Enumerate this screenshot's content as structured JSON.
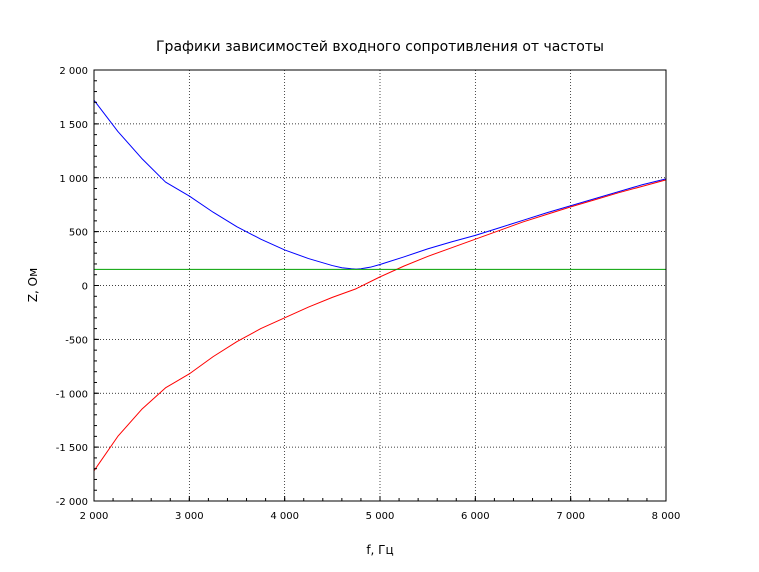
{
  "chart_data": {
    "type": "line",
    "title": "Графики зависимостей входного сопротивления от частоты",
    "xlabel": "f, Гц",
    "ylabel": "Z, Ом",
    "xlim": [
      2000,
      8000
    ],
    "ylim": [
      -2000,
      2000
    ],
    "xticks": [
      2000,
      3000,
      4000,
      5000,
      6000,
      7000,
      8000
    ],
    "xtick_labels": [
      "2 000",
      "3 000",
      "4 000",
      "5 000",
      "6 000",
      "7 000",
      "8 000"
    ],
    "yticks": [
      2000,
      1500,
      1000,
      500,
      0,
      -500,
      -1000,
      -1500,
      -2000
    ],
    "ytick_labels": [
      "2 000",
      "1 500",
      "1 000",
      "500",
      "0",
      "-500",
      "-1 000",
      "-1 500",
      "-2 000"
    ],
    "grid": true,
    "series": [
      {
        "color": "#0000ff",
        "x": [
          2000,
          2250,
          2500,
          2750,
          3000,
          3250,
          3500,
          3750,
          4000,
          4250,
          4500,
          4600,
          4700,
          4750,
          4800,
          4900,
          5000,
          5250,
          5500,
          5750,
          6000,
          6250,
          6500,
          6750,
          7000,
          7250,
          7500,
          7750,
          8000
        ],
        "y": [
          1720,
          1430,
          1180,
          960,
          830,
          680,
          545,
          430,
          330,
          250,
          185,
          165,
          155,
          152,
          155,
          170,
          195,
          265,
          340,
          405,
          465,
          535,
          605,
          675,
          740,
          805,
          870,
          935,
          990
        ]
      },
      {
        "color": "#ff0000",
        "x": [
          2000,
          2250,
          2500,
          2750,
          3000,
          3250,
          3500,
          3750,
          4000,
          4250,
          4500,
          4750,
          5000,
          5250,
          5500,
          5750,
          6000,
          6250,
          6500,
          6750,
          7000,
          7250,
          7500,
          7750,
          8000
        ],
        "y": [
          -1720,
          -1400,
          -1150,
          -950,
          -820,
          -660,
          -520,
          -400,
          -300,
          -200,
          -110,
          -30,
          80,
          180,
          270,
          350,
          430,
          510,
          590,
          660,
          730,
          795,
          860,
          920,
          980
        ]
      },
      {
        "color": "#00a000",
        "x": [
          2000,
          8000
        ],
        "y": [
          150,
          150
        ]
      }
    ]
  }
}
